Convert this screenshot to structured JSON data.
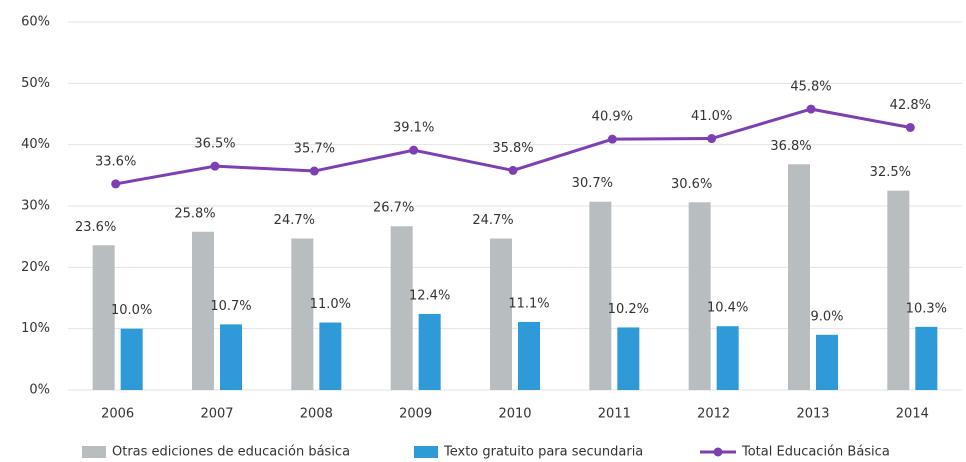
{
  "chart_data": {
    "type": "bar",
    "categories": [
      "2006",
      "2007",
      "2008",
      "2009",
      "2010",
      "2011",
      "2012",
      "2013",
      "2014"
    ],
    "series": [
      {
        "name": "Otras ediciones de educación básica",
        "type": "bar",
        "color": "#b8bdc0",
        "values": [
          23.6,
          25.8,
          24.7,
          26.7,
          24.7,
          30.7,
          30.6,
          36.8,
          32.5
        ],
        "value_labels": [
          "23.6%",
          "25.8%",
          "24.7%",
          "26.7%",
          "24.7%",
          "30.7%",
          "30.6%",
          "36.8%",
          "32.5%"
        ]
      },
      {
        "name": "Texto gratuito para secundaria",
        "type": "bar",
        "color": "#2e9ad8",
        "values": [
          10.0,
          10.7,
          11.0,
          12.4,
          11.1,
          10.2,
          10.4,
          9.0,
          10.3
        ],
        "value_labels": [
          "10.0%",
          "10.7%",
          "11.0%",
          "12.4%",
          "11.1%",
          "10.2%",
          "10.4%",
          "9.0%",
          "10.3%"
        ]
      },
      {
        "name": "Total Educación Básica",
        "type": "line",
        "color": "#7d3fb2",
        "values": [
          33.6,
          36.5,
          35.7,
          39.1,
          35.8,
          40.9,
          41.0,
          45.8,
          42.8
        ],
        "value_labels": [
          "33.6%",
          "36.5%",
          "35.7%",
          "39.1%",
          "35.8%",
          "40.9%",
          "41.0%",
          "45.8%",
          "42.8%"
        ]
      }
    ],
    "ylim": [
      0,
      60
    ],
    "yticks": [
      {
        "value": 0,
        "label": "0%"
      },
      {
        "value": 10,
        "label": "10%"
      },
      {
        "value": 20,
        "label": "20%"
      },
      {
        "value": 30,
        "label": "30%"
      },
      {
        "value": 40,
        "label": "40%"
      },
      {
        "value": 50,
        "label": "50%"
      },
      {
        "value": 60,
        "label": "60%"
      }
    ],
    "grid": true,
    "legend": "bottom"
  }
}
